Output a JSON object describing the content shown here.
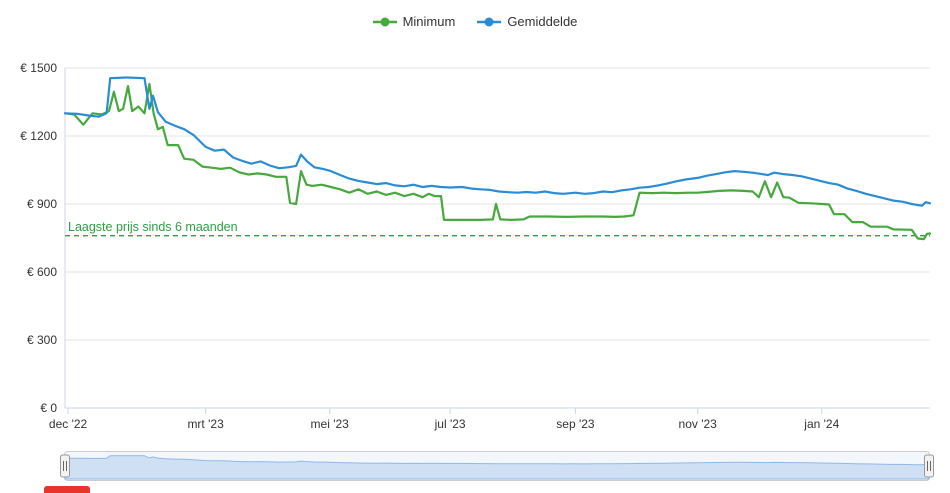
{
  "chart_data": {
    "type": "line",
    "title": "",
    "x_unit": "months since start (late dec '22)",
    "x_range": [
      0,
      14.15
    ],
    "y_range": [
      0,
      1500
    ],
    "grid": true,
    "legend_position": "top",
    "yticks": [
      {
        "value": 0,
        "label": "€ 0"
      },
      {
        "value": 300,
        "label": "€ 300"
      },
      {
        "value": 600,
        "label": "€ 600"
      },
      {
        "value": 900,
        "label": "€ 900"
      },
      {
        "value": 1200,
        "label": "€ 1200"
      },
      {
        "value": 1500,
        "label": "€ 1500"
      }
    ],
    "xticks": [
      {
        "value": 0.05,
        "label": "dec '22"
      },
      {
        "value": 2.3,
        "label": "mrt '23"
      },
      {
        "value": 4.33,
        "label": "mei '23"
      },
      {
        "value": 6.3,
        "label": "jul '23"
      },
      {
        "value": 8.35,
        "label": "sep '23"
      },
      {
        "value": 10.35,
        "label": "nov '23"
      },
      {
        "value": 12.38,
        "label": "jan '24"
      }
    ],
    "plotline": {
      "value": 760,
      "label": "Laagste prijs sinds 6 maanden",
      "color": "#2f9e44",
      "style": "dashed"
    },
    "series": [
      {
        "name": "Minimum",
        "color": "#47a83e",
        "points": [
          [
            0,
            1300
          ],
          [
            0.15,
            1295
          ],
          [
            0.3,
            1250
          ],
          [
            0.45,
            1300
          ],
          [
            0.6,
            1295
          ],
          [
            0.72,
            1310
          ],
          [
            0.8,
            1395
          ],
          [
            0.88,
            1310
          ],
          [
            0.95,
            1320
          ],
          [
            1.03,
            1420
          ],
          [
            1.1,
            1310
          ],
          [
            1.2,
            1330
          ],
          [
            1.3,
            1300
          ],
          [
            1.38,
            1430
          ],
          [
            1.45,
            1300
          ],
          [
            1.52,
            1230
          ],
          [
            1.6,
            1240
          ],
          [
            1.68,
            1160
          ],
          [
            1.85,
            1160
          ],
          [
            1.95,
            1100
          ],
          [
            2.1,
            1095
          ],
          [
            2.25,
            1065
          ],
          [
            2.4,
            1060
          ],
          [
            2.55,
            1055
          ],
          [
            2.7,
            1060
          ],
          [
            2.85,
            1040
          ],
          [
            3.0,
            1030
          ],
          [
            3.15,
            1035
          ],
          [
            3.3,
            1030
          ],
          [
            3.45,
            1020
          ],
          [
            3.62,
            1020
          ],
          [
            3.68,
            905
          ],
          [
            3.78,
            900
          ],
          [
            3.86,
            1045
          ],
          [
            3.95,
            985
          ],
          [
            4.05,
            980
          ],
          [
            4.2,
            985
          ],
          [
            4.35,
            975
          ],
          [
            4.5,
            965
          ],
          [
            4.65,
            950
          ],
          [
            4.8,
            965
          ],
          [
            4.95,
            945
          ],
          [
            5.1,
            955
          ],
          [
            5.25,
            940
          ],
          [
            5.4,
            950
          ],
          [
            5.55,
            935
          ],
          [
            5.7,
            945
          ],
          [
            5.85,
            930
          ],
          [
            5.95,
            945
          ],
          [
            6.05,
            935
          ],
          [
            6.15,
            935
          ],
          [
            6.2,
            830
          ],
          [
            6.5,
            830
          ],
          [
            6.8,
            830
          ],
          [
            7.0,
            832
          ],
          [
            7.05,
            900
          ],
          [
            7.12,
            832
          ],
          [
            7.3,
            830
          ],
          [
            7.5,
            832
          ],
          [
            7.6,
            845
          ],
          [
            7.9,
            845
          ],
          [
            8.2,
            843
          ],
          [
            8.5,
            845
          ],
          [
            8.8,
            845
          ],
          [
            9.0,
            843
          ],
          [
            9.15,
            845
          ],
          [
            9.3,
            850
          ],
          [
            9.4,
            950
          ],
          [
            9.6,
            948
          ],
          [
            9.8,
            950
          ],
          [
            10.0,
            948
          ],
          [
            10.2,
            950
          ],
          [
            10.35,
            950
          ],
          [
            10.5,
            953
          ],
          [
            10.7,
            958
          ],
          [
            10.9,
            960
          ],
          [
            11.1,
            958
          ],
          [
            11.25,
            955
          ],
          [
            11.35,
            930
          ],
          [
            11.45,
            1000
          ],
          [
            11.55,
            930
          ],
          [
            11.65,
            995
          ],
          [
            11.75,
            930
          ],
          [
            11.85,
            928
          ],
          [
            12.0,
            905
          ],
          [
            12.2,
            903
          ],
          [
            12.38,
            900
          ],
          [
            12.5,
            898
          ],
          [
            12.58,
            855
          ],
          [
            12.75,
            855
          ],
          [
            12.88,
            820
          ],
          [
            13.05,
            820
          ],
          [
            13.18,
            800
          ],
          [
            13.45,
            800
          ],
          [
            13.55,
            788
          ],
          [
            13.85,
            786
          ],
          [
            13.95,
            748
          ],
          [
            14.05,
            745
          ],
          [
            14.1,
            768
          ],
          [
            14.15,
            770
          ]
        ]
      },
      {
        "name": "Gemiddelde",
        "color": "#2b8cd6",
        "points": [
          [
            0,
            1300
          ],
          [
            0.2,
            1298
          ],
          [
            0.4,
            1290
          ],
          [
            0.55,
            1285
          ],
          [
            0.68,
            1300
          ],
          [
            0.74,
            1455
          ],
          [
            1.0,
            1458
          ],
          [
            1.3,
            1455
          ],
          [
            1.38,
            1320
          ],
          [
            1.44,
            1378
          ],
          [
            1.52,
            1305
          ],
          [
            1.65,
            1262
          ],
          [
            1.8,
            1245
          ],
          [
            1.95,
            1230
          ],
          [
            2.1,
            1205
          ],
          [
            2.3,
            1152
          ],
          [
            2.45,
            1135
          ],
          [
            2.6,
            1140
          ],
          [
            2.75,
            1105
          ],
          [
            2.9,
            1090
          ],
          [
            3.05,
            1078
          ],
          [
            3.2,
            1088
          ],
          [
            3.35,
            1070
          ],
          [
            3.5,
            1058
          ],
          [
            3.65,
            1062
          ],
          [
            3.78,
            1068
          ],
          [
            3.86,
            1118
          ],
          [
            3.96,
            1088
          ],
          [
            4.08,
            1062
          ],
          [
            4.22,
            1055
          ],
          [
            4.35,
            1045
          ],
          [
            4.5,
            1028
          ],
          [
            4.65,
            1012
          ],
          [
            4.8,
            1002
          ],
          [
            4.95,
            995
          ],
          [
            5.1,
            988
          ],
          [
            5.25,
            992
          ],
          [
            5.4,
            982
          ],
          [
            5.55,
            978
          ],
          [
            5.7,
            985
          ],
          [
            5.85,
            975
          ],
          [
            6.0,
            980
          ],
          [
            6.15,
            975
          ],
          [
            6.3,
            973
          ],
          [
            6.5,
            975
          ],
          [
            6.65,
            968
          ],
          [
            6.8,
            965
          ],
          [
            6.95,
            962
          ],
          [
            7.1,
            955
          ],
          [
            7.25,
            952
          ],
          [
            7.4,
            950
          ],
          [
            7.55,
            953
          ],
          [
            7.7,
            950
          ],
          [
            7.85,
            955
          ],
          [
            8.0,
            948
          ],
          [
            8.15,
            945
          ],
          [
            8.35,
            950
          ],
          [
            8.5,
            945
          ],
          [
            8.65,
            948
          ],
          [
            8.8,
            955
          ],
          [
            8.95,
            952
          ],
          [
            9.1,
            960
          ],
          [
            9.25,
            965
          ],
          [
            9.4,
            972
          ],
          [
            9.55,
            975
          ],
          [
            9.7,
            982
          ],
          [
            9.85,
            990
          ],
          [
            10.0,
            1000
          ],
          [
            10.15,
            1008
          ],
          [
            10.35,
            1015
          ],
          [
            10.5,
            1025
          ],
          [
            10.65,
            1032
          ],
          [
            10.8,
            1040
          ],
          [
            10.95,
            1045
          ],
          [
            11.1,
            1042
          ],
          [
            11.25,
            1038
          ],
          [
            11.4,
            1032
          ],
          [
            11.5,
            1028
          ],
          [
            11.6,
            1038
          ],
          [
            11.75,
            1032
          ],
          [
            11.9,
            1028
          ],
          [
            12.05,
            1022
          ],
          [
            12.2,
            1012
          ],
          [
            12.38,
            1000
          ],
          [
            12.5,
            992
          ],
          [
            12.65,
            985
          ],
          [
            12.8,
            968
          ],
          [
            12.95,
            958
          ],
          [
            13.1,
            945
          ],
          [
            13.25,
            935
          ],
          [
            13.4,
            925
          ],
          [
            13.55,
            915
          ],
          [
            13.7,
            910
          ],
          [
            13.85,
            900
          ],
          [
            13.95,
            895
          ],
          [
            14.02,
            893
          ],
          [
            14.08,
            908
          ],
          [
            14.15,
            903
          ]
        ]
      }
    ],
    "navigator": {
      "background": "#f3f7fc",
      "border_color": "#cccccc",
      "area_fill": "#cfe0f4",
      "area_line": "#8fb8e8",
      "handle_fill": "#f2f2f2",
      "handle_border": "#999999"
    },
    "axis_color": "#ccd6eb",
    "grid_color": "#e6e6e6"
  }
}
